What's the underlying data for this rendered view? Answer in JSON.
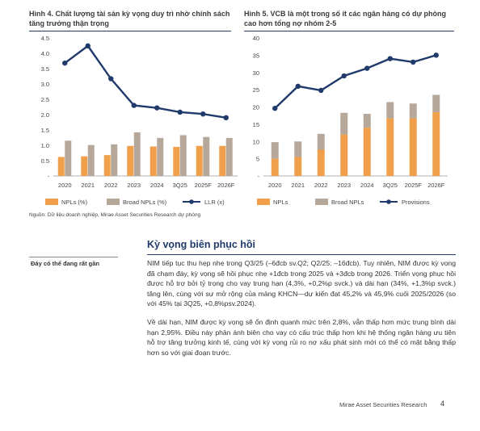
{
  "figures": {
    "left_title": "Hình 4. Chất lượng tài sản kỳ vọng duy trì nhờ chính sách tăng trưởng thận trọng",
    "right_title": "Hình 5. VCB là một trong số ít các ngân hàng có dự phòng cao hơn tổng nợ nhóm 2-5"
  },
  "chart_data": [
    {
      "type": "bar",
      "categories": [
        "2020",
        "2021",
        "2022",
        "2023",
        "2024",
        "3Q25",
        "2025F",
        "2026F"
      ],
      "yticks": [
        "4.5",
        "4.0",
        "3.5",
        "3.0",
        "2.5",
        "2.0",
        "1.5",
        "1.0",
        "0.5",
        "-"
      ],
      "ylim": [
        0,
        4.5
      ],
      "series": [
        {
          "name": "NPLs (%)",
          "kind": "bar",
          "color": "#f0a04b",
          "values": [
            0.62,
            0.64,
            0.68,
            0.98,
            0.96,
            0.95,
            0.98,
            0.98
          ]
        },
        {
          "name": "Broad NPLs (%)",
          "kind": "bar",
          "color": "#b5a89b",
          "values": [
            1.15,
            1.01,
            1.03,
            1.42,
            1.24,
            1.33,
            1.27,
            1.24
          ]
        },
        {
          "name": "LLR (x)",
          "kind": "line",
          "color": "#1f3a6b",
          "values": [
            3.68,
            4.24,
            3.17,
            2.3,
            2.22,
            2.08,
            2.02,
            1.9
          ]
        }
      ],
      "legend": [
        "NPLs (%)",
        "Broad NPLs (%)",
        "LLR (x)"
      ]
    },
    {
      "type": "bar",
      "categories": [
        "2020",
        "2021",
        "2022",
        "2023",
        "2024",
        "3Q25",
        "2025F",
        "2026F"
      ],
      "yticks": [
        "40",
        "35",
        "30",
        "25",
        "20",
        "15",
        "10",
        "5",
        "-"
      ],
      "ylim": [
        0,
        40
      ],
      "series": [
        {
          "name": "NPLs",
          "kind": "stack",
          "color": "#f0a04b",
          "values": [
            5.0,
            5.5,
            7.6,
            12.0,
            14.0,
            16.7,
            16.7,
            18.5
          ]
        },
        {
          "name": "Broad NPLs",
          "kind": "stack",
          "color": "#b5a89b",
          "values": [
            4.8,
            4.5,
            4.6,
            6.3,
            4.0,
            4.7,
            4.3,
            5.0
          ]
        },
        {
          "name": "Provisions",
          "kind": "line",
          "color": "#1f3a6b",
          "values": [
            19.6,
            26.0,
            24.8,
            29.0,
            31.2,
            34.0,
            33.0,
            35.0
          ]
        }
      ],
      "legend": [
        "NPLs",
        "Broad NPLs",
        "Provisions"
      ]
    }
  ],
  "source": "Nguồn: Dữ liệu doanh nghiệp, Mirae Asset Securities Research dự phóng",
  "section": {
    "heading": "Kỳ vọng biên phục hồi",
    "side_note": "Đáy có thể đang rất gần",
    "paragraphs": [
      "NIM tiếp tục thu hẹp nhẹ trong Q3/25 (–6đcb sv.Q2; Q2/25: –16đcb). Tuy nhiên, NIM được kỳ vọng đã chạm đáy, kỳ vọng sẽ hồi phục nhẹ +1đcb trong 2025 và +3đcb trong 2026. Triển vọng phục hồi được hỗ trợ bởi tỷ trọng cho vay trung hạn (4,3%, +0,2%p svck.) và dài hạn (34%, +1,3%p svck.) tăng lên, cùng với sự mở rộng của mảng KHCN—dự kiến đạt 45,2% và 45,9% cuối 2025/2026 (so với 45% tại 3Q25, +0,8%psv.2024).",
      "Về dài hạn, NIM được kỳ vọng sẽ ổn định quanh mức trên 2,8%, vẫn thấp hơn mức trung bình dài hạn 2,95%. Điều này phản ánh biên cho vay có cấu trúc thấp hơn khi hệ thống ngân hàng ưu tiên hỗ trợ tăng trưởng kinh tế, cùng với kỳ vọng rủi ro nợ xấu phát sinh mới có thể có mặt bằng thấp hơn so với giai đoạn trước."
    ]
  },
  "footer": {
    "text": "Mirae Asset Securities Research",
    "page": "4"
  }
}
